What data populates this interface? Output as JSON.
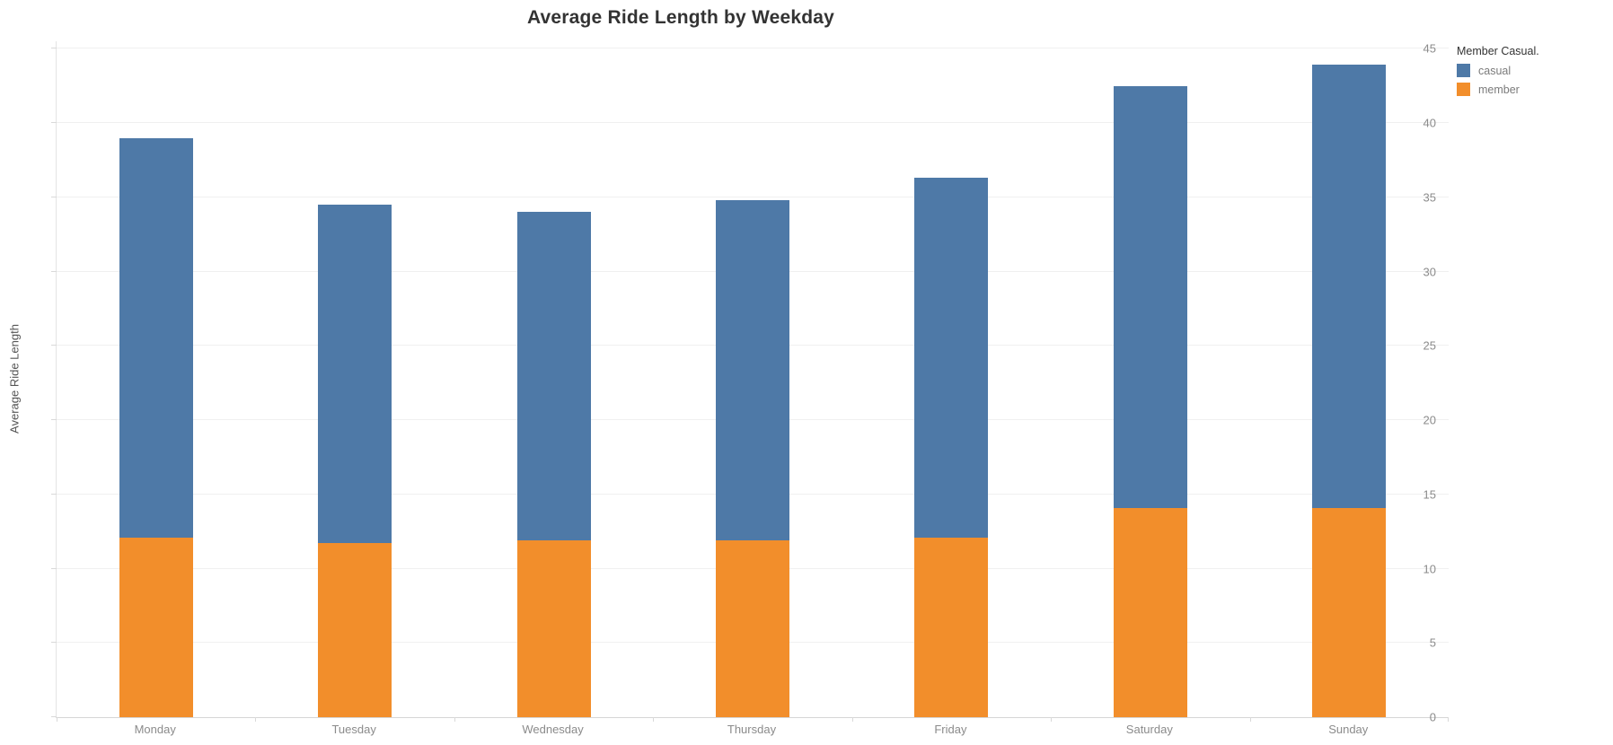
{
  "title": "Average Ride Length by Weekday",
  "y_axis": {
    "label": "Average Ride Length",
    "ticks": [
      0,
      5,
      10,
      15,
      20,
      25,
      30,
      35,
      40,
      45
    ],
    "max_visible": 45.5
  },
  "legend": {
    "title": "Member Casual.",
    "items": [
      {
        "label": "casual",
        "color": "#4e79a7"
      },
      {
        "label": "member",
        "color": "#f28e2b"
      }
    ]
  },
  "colors": {
    "casual_blue": "#4e79a7",
    "member_orange": "#f28e2b",
    "gridline": "#f0f0f0",
    "axis_text": "#8b8b8b",
    "title_text": "#333333"
  },
  "chart_data": {
    "type": "bar",
    "stacked": true,
    "title": "Average Ride Length by Weekday",
    "xlabel": "",
    "ylabel": "Average Ride Length",
    "ylim": [
      0,
      45
    ],
    "grid": "horizontal",
    "legend_position": "top-right",
    "categories": [
      "Monday",
      "Tuesday",
      "Wednesday",
      "Thursday",
      "Friday",
      "Saturday",
      "Sunday"
    ],
    "series": [
      {
        "name": "member",
        "color": "#f28e2b",
        "values": [
          12.1,
          11.7,
          11.9,
          11.9,
          12.1,
          14.1,
          14.1
        ]
      },
      {
        "name": "casual",
        "color": "#4e79a7",
        "values": [
          26.9,
          22.8,
          22.1,
          22.9,
          24.2,
          28.4,
          29.8
        ]
      }
    ],
    "stack_totals": [
      39.0,
      34.5,
      34.0,
      34.8,
      36.3,
      42.5,
      43.9
    ]
  }
}
